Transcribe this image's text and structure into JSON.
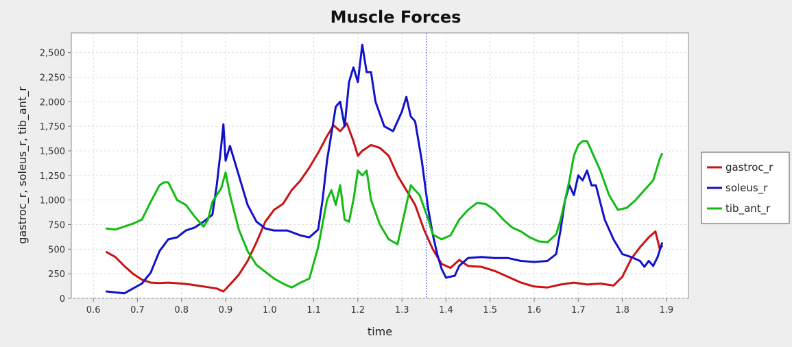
{
  "chart_data": {
    "type": "line",
    "title": "Muscle Forces",
    "xlabel": "time",
    "ylabel": "gastroc_r, soleus_r, tib_ant_r",
    "xlim": [
      0.55,
      1.95
    ],
    "ylim": [
      0,
      2700
    ],
    "xticks": [
      0.6,
      0.7,
      0.8,
      0.9,
      1.0,
      1.1,
      1.2,
      1.3,
      1.4,
      1.5,
      1.6,
      1.7,
      1.8,
      1.9
    ],
    "xtick_labels": [
      "0.6",
      "0.7",
      "0.8",
      "0.9",
      "1.0",
      "1.1",
      "1.2",
      "1.3",
      "1.4",
      "1.5",
      "1.6",
      "1.7",
      "1.8",
      "1.9"
    ],
    "yticks": [
      0,
      250,
      500,
      750,
      1000,
      1250,
      1500,
      1750,
      2000,
      2250,
      2500
    ],
    "ytick_labels": [
      "0",
      "250",
      "500",
      "750",
      "1,000",
      "1,250",
      "1,500",
      "1,750",
      "2,000",
      "2,250",
      "2,500"
    ],
    "grid": true,
    "legend_position": "right",
    "marker_x": 1.355,
    "series": [
      {
        "name": "gastroc_r",
        "color": "#cc1111",
        "points": [
          [
            0.63,
            470
          ],
          [
            0.65,
            420
          ],
          [
            0.67,
            330
          ],
          [
            0.69,
            250
          ],
          [
            0.71,
            190
          ],
          [
            0.73,
            160
          ],
          [
            0.75,
            155
          ],
          [
            0.77,
            160
          ],
          [
            0.8,
            150
          ],
          [
            0.82,
            140
          ],
          [
            0.85,
            120
          ],
          [
            0.88,
            100
          ],
          [
            0.895,
            70
          ],
          [
            0.91,
            140
          ],
          [
            0.93,
            240
          ],
          [
            0.95,
            380
          ],
          [
            0.97,
            570
          ],
          [
            0.99,
            780
          ],
          [
            1.01,
            900
          ],
          [
            1.03,
            960
          ],
          [
            1.05,
            1100
          ],
          [
            1.07,
            1200
          ],
          [
            1.09,
            1330
          ],
          [
            1.11,
            1480
          ],
          [
            1.13,
            1650
          ],
          [
            1.145,
            1760
          ],
          [
            1.16,
            1700
          ],
          [
            1.175,
            1780
          ],
          [
            1.19,
            1600
          ],
          [
            1.2,
            1450
          ],
          [
            1.21,
            1500
          ],
          [
            1.23,
            1560
          ],
          [
            1.25,
            1530
          ],
          [
            1.27,
            1450
          ],
          [
            1.29,
            1250
          ],
          [
            1.31,
            1100
          ],
          [
            1.33,
            950
          ],
          [
            1.35,
            700
          ],
          [
            1.37,
            500
          ],
          [
            1.39,
            350
          ],
          [
            1.41,
            310
          ],
          [
            1.43,
            390
          ],
          [
            1.45,
            330
          ],
          [
            1.48,
            320
          ],
          [
            1.51,
            280
          ],
          [
            1.54,
            220
          ],
          [
            1.57,
            160
          ],
          [
            1.6,
            120
          ],
          [
            1.63,
            110
          ],
          [
            1.66,
            140
          ],
          [
            1.69,
            160
          ],
          [
            1.72,
            140
          ],
          [
            1.75,
            150
          ],
          [
            1.78,
            130
          ],
          [
            1.8,
            220
          ],
          [
            1.82,
            400
          ],
          [
            1.84,
            520
          ],
          [
            1.86,
            620
          ],
          [
            1.875,
            680
          ],
          [
            1.885,
            500
          ],
          [
            1.89,
            530
          ]
        ]
      },
      {
        "name": "soleus_r",
        "color": "#1111cc",
        "points": [
          [
            0.63,
            70
          ],
          [
            0.65,
            60
          ],
          [
            0.67,
            50
          ],
          [
            0.69,
            100
          ],
          [
            0.71,
            150
          ],
          [
            0.73,
            260
          ],
          [
            0.75,
            480
          ],
          [
            0.77,
            600
          ],
          [
            0.79,
            620
          ],
          [
            0.81,
            690
          ],
          [
            0.83,
            720
          ],
          [
            0.85,
            780
          ],
          [
            0.87,
            850
          ],
          [
            0.88,
            1150
          ],
          [
            0.89,
            1550
          ],
          [
            0.895,
            1770
          ],
          [
            0.9,
            1400
          ],
          [
            0.91,
            1550
          ],
          [
            0.93,
            1250
          ],
          [
            0.95,
            950
          ],
          [
            0.97,
            780
          ],
          [
            0.99,
            710
          ],
          [
            1.01,
            690
          ],
          [
            1.04,
            690
          ],
          [
            1.07,
            640
          ],
          [
            1.09,
            620
          ],
          [
            1.11,
            700
          ],
          [
            1.12,
            1000
          ],
          [
            1.13,
            1400
          ],
          [
            1.15,
            1950
          ],
          [
            1.16,
            2000
          ],
          [
            1.17,
            1750
          ],
          [
            1.18,
            2200
          ],
          [
            1.19,
            2350
          ],
          [
            1.2,
            2200
          ],
          [
            1.21,
            2580
          ],
          [
            1.22,
            2300
          ],
          [
            1.23,
            2300
          ],
          [
            1.24,
            2000
          ],
          [
            1.26,
            1750
          ],
          [
            1.28,
            1700
          ],
          [
            1.3,
            1900
          ],
          [
            1.31,
            2050
          ],
          [
            1.32,
            1850
          ],
          [
            1.33,
            1800
          ],
          [
            1.345,
            1400
          ],
          [
            1.36,
            900
          ],
          [
            1.37,
            650
          ],
          [
            1.38,
            450
          ],
          [
            1.39,
            300
          ],
          [
            1.4,
            210
          ],
          [
            1.42,
            230
          ],
          [
            1.43,
            330
          ],
          [
            1.45,
            410
          ],
          [
            1.48,
            420
          ],
          [
            1.51,
            410
          ],
          [
            1.54,
            410
          ],
          [
            1.57,
            380
          ],
          [
            1.6,
            370
          ],
          [
            1.63,
            380
          ],
          [
            1.65,
            450
          ],
          [
            1.66,
            700
          ],
          [
            1.67,
            1000
          ],
          [
            1.68,
            1150
          ],
          [
            1.69,
            1050
          ],
          [
            1.7,
            1250
          ],
          [
            1.71,
            1200
          ],
          [
            1.72,
            1300
          ],
          [
            1.73,
            1150
          ],
          [
            1.74,
            1150
          ],
          [
            1.76,
            800
          ],
          [
            1.78,
            600
          ],
          [
            1.8,
            450
          ],
          [
            1.82,
            420
          ],
          [
            1.84,
            380
          ],
          [
            1.85,
            320
          ],
          [
            1.86,
            380
          ],
          [
            1.87,
            330
          ],
          [
            1.88,
            420
          ],
          [
            1.89,
            560
          ]
        ]
      },
      {
        "name": "tib_ant_r",
        "color": "#11bb11",
        "points": [
          [
            0.63,
            710
          ],
          [
            0.65,
            700
          ],
          [
            0.67,
            730
          ],
          [
            0.69,
            760
          ],
          [
            0.71,
            800
          ],
          [
            0.73,
            980
          ],
          [
            0.75,
            1150
          ],
          [
            0.76,
            1180
          ],
          [
            0.77,
            1180
          ],
          [
            0.79,
            1000
          ],
          [
            0.81,
            950
          ],
          [
            0.83,
            830
          ],
          [
            0.85,
            730
          ],
          [
            0.86,
            800
          ],
          [
            0.87,
            980
          ],
          [
            0.88,
            1050
          ],
          [
            0.89,
            1120
          ],
          [
            0.9,
            1280
          ],
          [
            0.91,
            1050
          ],
          [
            0.93,
            700
          ],
          [
            0.95,
            480
          ],
          [
            0.97,
            340
          ],
          [
            0.99,
            270
          ],
          [
            1.01,
            200
          ],
          [
            1.03,
            150
          ],
          [
            1.05,
            110
          ],
          [
            1.07,
            160
          ],
          [
            1.09,
            200
          ],
          [
            1.11,
            520
          ],
          [
            1.13,
            1000
          ],
          [
            1.14,
            1100
          ],
          [
            1.15,
            950
          ],
          [
            1.16,
            1150
          ],
          [
            1.17,
            800
          ],
          [
            1.18,
            780
          ],
          [
            1.19,
            1000
          ],
          [
            1.2,
            1300
          ],
          [
            1.21,
            1250
          ],
          [
            1.22,
            1300
          ],
          [
            1.23,
            1000
          ],
          [
            1.25,
            750
          ],
          [
            1.27,
            600
          ],
          [
            1.29,
            550
          ],
          [
            1.31,
            950
          ],
          [
            1.32,
            1150
          ],
          [
            1.34,
            1050
          ],
          [
            1.36,
            800
          ],
          [
            1.37,
            650
          ],
          [
            1.39,
            600
          ],
          [
            1.41,
            640
          ],
          [
            1.43,
            800
          ],
          [
            1.45,
            900
          ],
          [
            1.47,
            970
          ],
          [
            1.49,
            960
          ],
          [
            1.51,
            900
          ],
          [
            1.53,
            800
          ],
          [
            1.55,
            720
          ],
          [
            1.57,
            680
          ],
          [
            1.59,
            620
          ],
          [
            1.61,
            580
          ],
          [
            1.63,
            570
          ],
          [
            1.65,
            650
          ],
          [
            1.66,
            800
          ],
          [
            1.67,
            1000
          ],
          [
            1.68,
            1200
          ],
          [
            1.69,
            1450
          ],
          [
            1.7,
            1560
          ],
          [
            1.71,
            1600
          ],
          [
            1.72,
            1600
          ],
          [
            1.73,
            1500
          ],
          [
            1.75,
            1300
          ],
          [
            1.77,
            1050
          ],
          [
            1.79,
            900
          ],
          [
            1.81,
            920
          ],
          [
            1.83,
            1000
          ],
          [
            1.85,
            1100
          ],
          [
            1.87,
            1200
          ],
          [
            1.885,
            1420
          ],
          [
            1.89,
            1470
          ]
        ]
      }
    ]
  }
}
